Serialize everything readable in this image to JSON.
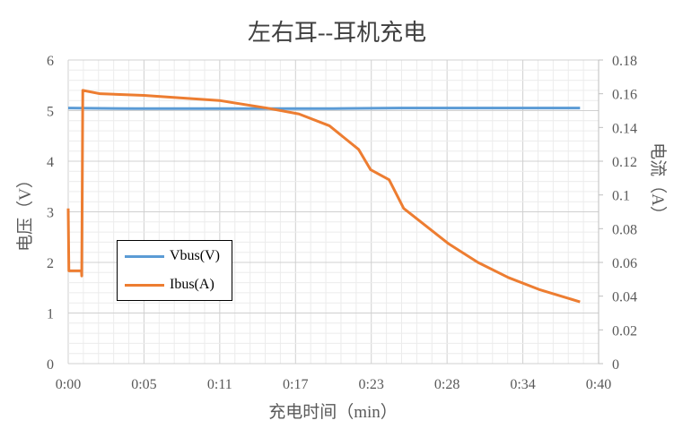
{
  "chart_data": {
    "type": "line",
    "title": "左右耳--耳机充电",
    "xlabel": "充电时间（min）",
    "ylabel": "电压（V）",
    "y2label": "电流（A）",
    "xlim": [
      0,
      40
    ],
    "ylim": [
      0,
      6
    ],
    "y2lim": [
      0,
      0.18
    ],
    "x_tick_labels": [
      "0:00",
      "0:05",
      "0:11",
      "0:17",
      "0:23",
      "0:28",
      "0:34",
      "0:40"
    ],
    "y_tick_labels": [
      "0",
      "1",
      "2",
      "3",
      "4",
      "5",
      "6"
    ],
    "y2_tick_labels": [
      "0",
      "0.02",
      "0.04",
      "0.06",
      "0.08",
      "0.1",
      "0.12",
      "0.14",
      "0.16",
      "0.18"
    ],
    "grid": true,
    "legend": "inside-lower-left",
    "series": [
      {
        "name": "Vbus(V)",
        "axis": "left",
        "color": "#5B9BD5",
        "x": [
          0,
          5,
          10,
          15,
          20,
          25,
          30,
          35,
          38.6
        ],
        "y": [
          5.05,
          5.04,
          5.04,
          5.04,
          5.04,
          5.05,
          5.05,
          5.05,
          5.05
        ]
      },
      {
        "name": "Ibus(A)",
        "axis": "right",
        "color": "#ED7D31",
        "x": [
          0,
          0.05,
          1.0,
          1.02,
          1.1,
          2.4,
          5.7,
          11.4,
          15.0,
          17.4,
          19.7,
          21.9,
          22.8,
          24.2,
          25.3,
          28.7,
          30.9,
          33.2,
          35.5,
          38.6
        ],
        "y": [
          0.092,
          0.055,
          0.055,
          0.052,
          0.162,
          0.16,
          0.159,
          0.156,
          0.1515,
          0.148,
          0.141,
          0.127,
          0.115,
          0.109,
          0.092,
          0.071,
          0.06,
          0.051,
          0.044,
          0.0366
        ]
      }
    ]
  }
}
